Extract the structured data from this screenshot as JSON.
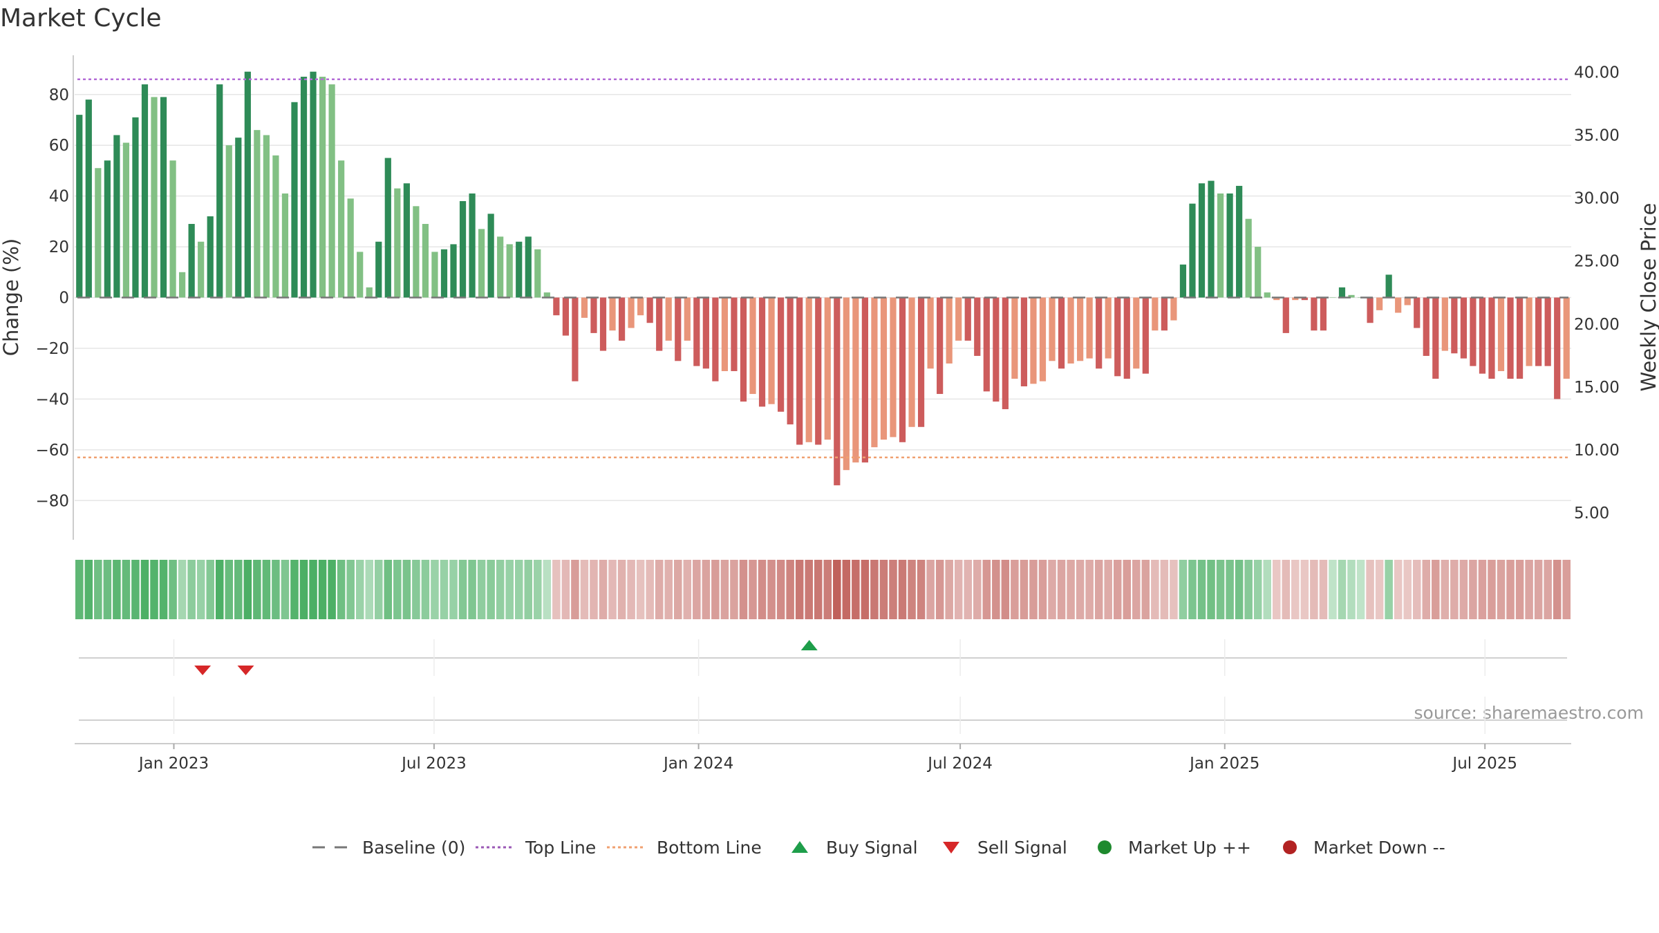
{
  "chart_data": {
    "type": "bar",
    "title": "Market Cycle",
    "ylabel": "Change (%)",
    "y2label": "Weekly Close Price",
    "ylim": [
      -96,
      96
    ],
    "y2lim": [
      2.75,
      41.45
    ],
    "yticks": [
      -80,
      -60,
      -40,
      -20,
      0,
      20,
      40,
      60,
      80
    ],
    "ytick_labels": [
      "−80",
      "−60",
      "−40",
      "−20",
      "0",
      "20",
      "40",
      "60",
      "80"
    ],
    "y2ticks": [
      5,
      10,
      15,
      20,
      25,
      30,
      35,
      40
    ],
    "y2tick_labels": [
      "5.00",
      "10.00",
      "15.00",
      "20.00",
      "25.00",
      "30.00",
      "35.00",
      "40.00"
    ],
    "x_start": "2022-10-24",
    "x_end": "2025-08-30",
    "x_range_days": [
      0,
      1041
    ],
    "x_interval_days": 7,
    "xticks": [
      {
        "label": "Jan 2023",
        "day": 69
      },
      {
        "label": "Jul 2023",
        "day": 250
      },
      {
        "label": "Jan 2024",
        "day": 434
      },
      {
        "label": "Jul 2024",
        "day": 616
      },
      {
        "label": "Jan 2025",
        "day": 800
      },
      {
        "label": "Jul 2025",
        "day": 981
      }
    ],
    "top_line": 86,
    "bottom_line": -63,
    "baseline": 0,
    "series": [
      {
        "name": "Change (%)",
        "values": [
          72,
          78,
          51,
          54,
          64,
          61,
          71,
          84,
          79,
          79,
          54,
          10,
          29,
          22,
          32,
          84,
          60,
          63,
          89,
          66,
          64,
          56,
          41,
          77,
          87,
          89,
          87,
          84,
          54,
          39,
          18,
          4,
          22,
          55,
          43,
          45,
          36,
          29,
          18,
          19,
          21,
          38,
          41,
          27,
          33,
          24,
          21,
          22,
          24,
          19,
          2,
          -7,
          -15,
          -33,
          -8,
          -14,
          -21,
          -13,
          -17,
          -12,
          -7,
          -10,
          -21,
          -17,
          -25,
          -17,
          -27,
          -28,
          -33,
          -29,
          -29,
          -41,
          -38,
          -43,
          -42,
          -45,
          -50,
          -58,
          -57,
          -58,
          -56,
          -74,
          -68,
          -65,
          -65,
          -59,
          -56,
          -55,
          -57,
          -51,
          -51,
          -28,
          -38,
          -26,
          -17,
          -17,
          -23,
          -37,
          -41,
          -44,
          -32,
          -35,
          -34,
          -33,
          -25,
          -28,
          -26,
          -25,
          -24,
          -28,
          -24,
          -31,
          -32,
          -28,
          -30,
          -13,
          -13,
          -9,
          13,
          37,
          45,
          46,
          41,
          41,
          44,
          31,
          20,
          2,
          -1,
          -14,
          -1,
          -1,
          -13,
          -13,
          0,
          4,
          1,
          0,
          -10,
          -5,
          9,
          -6,
          -3,
          -12,
          -23,
          -32,
          -21,
          -22,
          -24,
          -27,
          -30,
          -32,
          -29,
          -32,
          -32,
          -27,
          -27,
          -27,
          -40,
          -32
        ]
      },
      {
        "name": "Cycle Zone",
        "values": [
          0.82,
          0.9,
          0.7,
          0.72,
          0.85,
          0.78,
          0.86,
          0.95,
          0.9,
          0.9,
          0.7,
          0.3,
          0.48,
          0.4,
          0.55,
          0.95,
          0.75,
          0.78,
          1,
          0.82,
          0.8,
          0.72,
          0.58,
          0.9,
          0.98,
          1,
          0.98,
          0.95,
          0.7,
          0.56,
          0.38,
          0.25,
          0.42,
          0.7,
          0.6,
          0.62,
          0.52,
          0.48,
          0.38,
          0.4,
          0.4,
          0.55,
          0.58,
          0.46,
          0.5,
          0.44,
          0.4,
          0.4,
          0.44,
          0.38,
          0.15,
          0.15,
          0.22,
          0.45,
          0.2,
          0.25,
          0.32,
          0.22,
          0.28,
          0.22,
          0.15,
          0.2,
          0.32,
          0.28,
          0.36,
          0.28,
          0.38,
          0.4,
          0.45,
          0.4,
          0.4,
          0.55,
          0.5,
          0.58,
          0.56,
          0.6,
          0.66,
          0.76,
          0.74,
          0.76,
          0.72,
          0.95,
          0.88,
          0.84,
          0.84,
          0.76,
          0.72,
          0.7,
          0.74,
          0.66,
          0.66,
          0.38,
          0.5,
          0.36,
          0.26,
          0.26,
          0.32,
          0.5,
          0.55,
          0.58,
          0.44,
          0.46,
          0.45,
          0.44,
          0.34,
          0.38,
          0.35,
          0.34,
          0.33,
          0.38,
          0.33,
          0.42,
          0.44,
          0.38,
          0.4,
          0.2,
          0.2,
          0.15,
          0.45,
          0.6,
          0.66,
          0.68,
          0.62,
          0.62,
          0.66,
          0.52,
          0.4,
          0.2,
          0.1,
          0.2,
          0.1,
          0.1,
          0.2,
          0.2,
          0.1,
          0.3,
          0.2,
          0.1,
          0.15,
          0.1,
          0.4,
          0.1,
          0.1,
          0.18,
          0.32,
          0.44,
          0.3,
          0.32,
          0.34,
          0.38,
          0.42,
          0.44,
          0.4,
          0.44,
          0.44,
          0.38,
          0.38,
          0.38,
          0.55,
          0.44
        ]
      }
    ],
    "buy_signals_days": [
      511
    ],
    "sell_signals_days": [
      89,
      119
    ],
    "source": "source: sharemaestro.com",
    "legend": [
      {
        "label": "Baseline (0)",
        "symbol": "dash",
        "color": "#777777"
      },
      {
        "label": "Top Line",
        "symbol": "dotted",
        "color": "#9b59b6"
      },
      {
        "label": "Bottom Line",
        "symbol": "dotted",
        "color": "#f0a070"
      },
      {
        "label": "Buy Signal",
        "symbol": "triangle-up",
        "color": "#1e9e4a"
      },
      {
        "label": "Sell Signal",
        "symbol": "triangle-down",
        "color": "#d62728"
      },
      {
        "label": "Market Up ++",
        "symbol": "circle",
        "color": "#1e8a2e"
      },
      {
        "label": "Market Down --",
        "symbol": "circle",
        "color": "#b22222"
      }
    ],
    "colors": {
      "pos_dark": "#2e8b57",
      "pos_light": "#82c084",
      "neg_dark": "#cd5c5c",
      "neg_light": "#e9967a",
      "zone_pos": "#4caf65",
      "zone_neg": "#c0605a",
      "grid": "#e6e6e6",
      "axis": "#cccccc",
      "baseline": "#777777"
    }
  }
}
